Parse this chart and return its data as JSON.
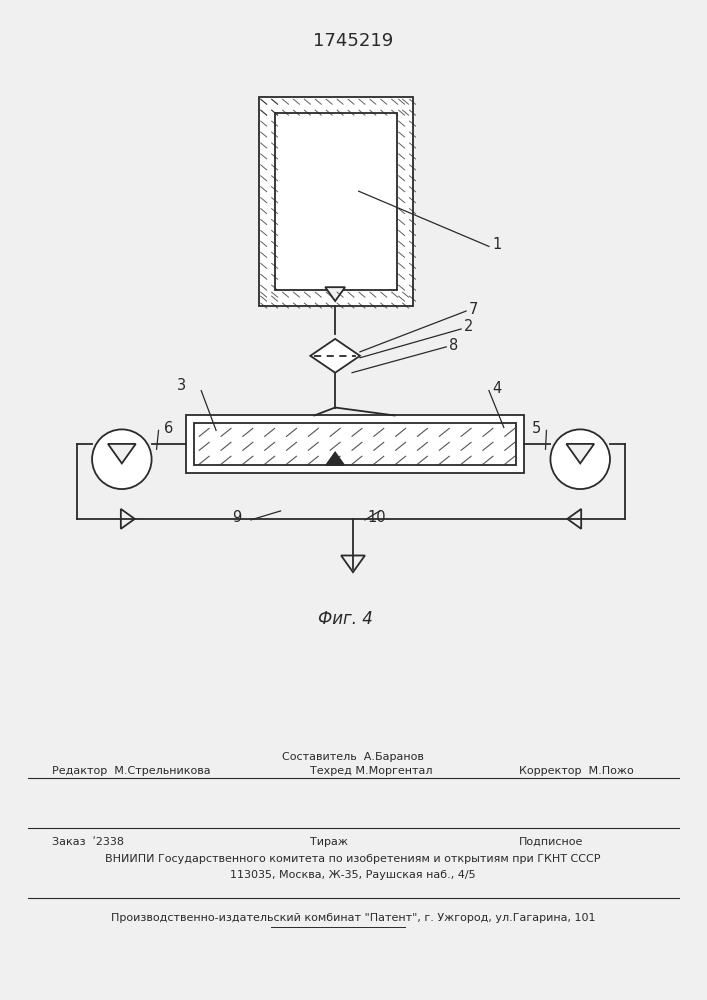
{
  "title": "1745219",
  "fig_label": "Фиг. 4",
  "background_color": "#f0f0f0",
  "line_color": "#2a2a2a",
  "footer": {
    "line1_center": "Составитель  А.Баранов",
    "line2_left": "Редактор  М.Стрельникова",
    "line2_center": "Техред М.Моргентал",
    "line2_right": "Корректор  М.Пожо",
    "line3_left": "Заказ  ʹ2338",
    "line3_center": "Тираж",
    "line3_right": "Подписное",
    "line4": "ВНИИПИ Государственного комитета по изобретениям и открытиям при ГКНТ СССР",
    "line5": "113035, Москва, Ж-35, Раушская наб., 4/5",
    "line6": "Производственно-издательский комбинат \"Патент\", г. Ужгород, ул.Гагарина, 101"
  }
}
